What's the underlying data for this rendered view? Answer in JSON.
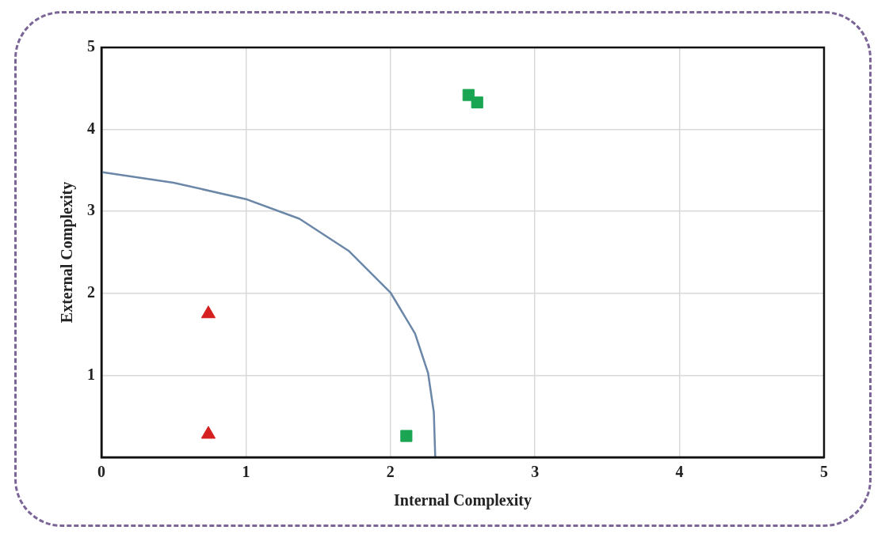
{
  "chart_data": {
    "type": "scatter",
    "xlabel": "Internal Complexity",
    "ylabel": "External Complexity",
    "xlim": [
      0,
      5
    ],
    "ylim": [
      0,
      5
    ],
    "xticks": [
      0,
      1,
      2,
      3,
      4,
      5
    ],
    "yticks": [
      {
        "value": 0,
        "label": null
      },
      1,
      2,
      3,
      4,
      5
    ],
    "grid": true,
    "legend": false,
    "series": [
      {
        "type": "line",
        "color": "#6b87a8",
        "marker": "none",
        "x": [
          0,
          0.5,
          1,
          1.37,
          1.71,
          2.0,
          2.17,
          2.26,
          2.3,
          2.31
        ],
        "values": [
          3.48,
          3.35,
          3.15,
          2.91,
          2.52,
          2.01,
          1.51,
          1.03,
          0.55,
          0
        ]
      },
      {
        "type": "scatter",
        "color": "#d62020",
        "marker": "triangle",
        "x": [
          0.74,
          0.74
        ],
        "values": [
          1.75,
          0.28
        ]
      },
      {
        "type": "scatter",
        "color": "#1aa552",
        "marker": "square",
        "x": [
          2.11,
          2.54,
          2.6
        ],
        "values": [
          0.26,
          4.42,
          4.33
        ]
      }
    ]
  }
}
